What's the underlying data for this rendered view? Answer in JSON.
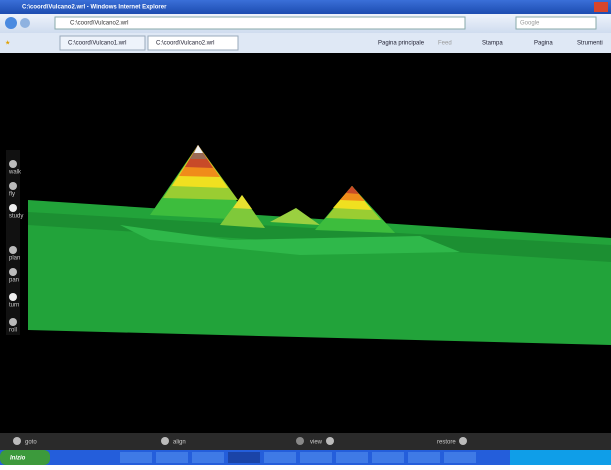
{
  "window": {
    "title": "C:\\coord\\Vulcano2.wrl - Windows Internet Explorer",
    "address": "C:\\coord\\Vulcano2.wrl",
    "search": "Google"
  },
  "tabs": [
    "C:\\coord\\Vulcano1.wrl",
    "C:\\coord\\Vulcano2.wrl"
  ],
  "toolbar": [
    "Pagina principale",
    "Feed",
    "Stampa",
    "Pagina",
    "Strumenti"
  ],
  "side_controls": [
    "walk",
    "fly",
    "study",
    "plan",
    "pan",
    "turn",
    "roll"
  ],
  "nav_bar": [
    "goto",
    "align",
    "view",
    "restore"
  ],
  "taskbar": {
    "start": "Inizio"
  }
}
